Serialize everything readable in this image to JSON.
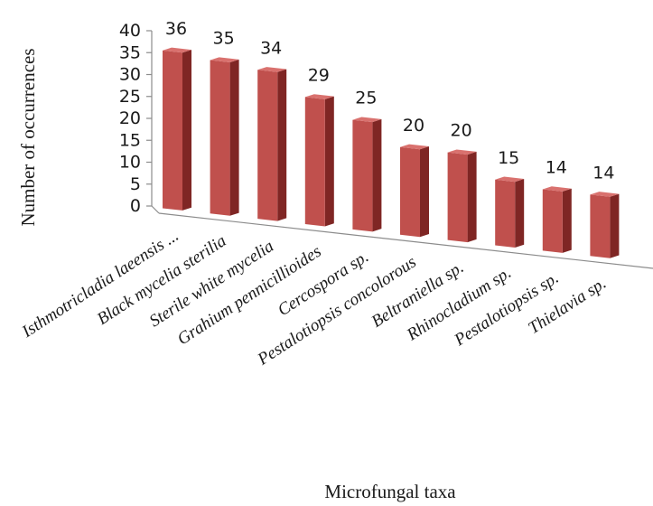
{
  "chart_data": {
    "type": "bar",
    "style": "3d-column",
    "categories": [
      "Isthmotricladia laeensis ...",
      "Black mycelia sterilia",
      "Sterile white mycelia",
      "Grahium pennicillioides",
      "Cercospora sp.",
      "Pestalotiopsis concolorous",
      "Beltraniella sp.",
      "Rhinocladium sp.",
      "Pestalotiopsis sp.",
      "Thielavia sp."
    ],
    "values": [
      36,
      35,
      34,
      29,
      25,
      20,
      20,
      15,
      14,
      14
    ],
    "xlabel": "Microfungal taxa",
    "ylabel": "Number of occurrences",
    "ylim": [
      0,
      40
    ],
    "yticks": [
      0,
      5,
      10,
      15,
      20,
      25,
      30,
      35,
      40
    ],
    "grid": false,
    "legend": "none",
    "colors": {
      "bar_front": "#c0504d",
      "bar_side": "#7f2624",
      "bar_top": "#d9716e",
      "axis": "#8c8c8c"
    }
  }
}
